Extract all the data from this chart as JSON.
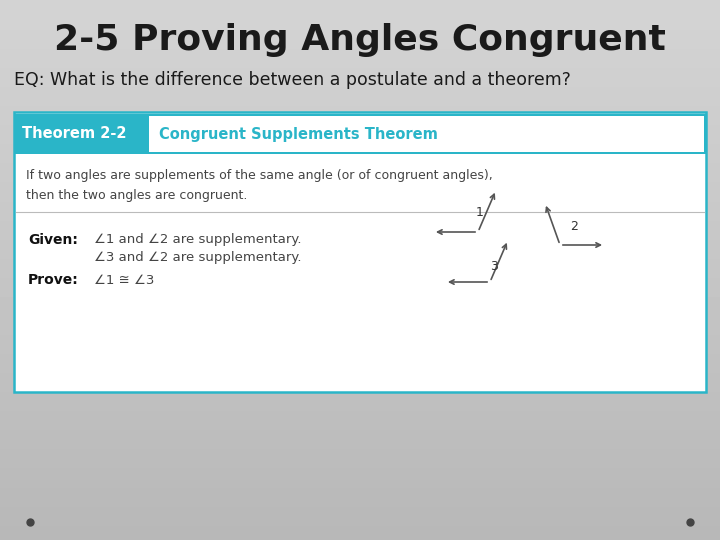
{
  "title": "2-5 Proving Angles Congruent",
  "eq_text": "EQ: What is the difference between a postulate and a theorem?",
  "theorem_label": "Theorem 2-2",
  "theorem_title": "Congruent Supplements Theorem",
  "theorem_body_line1": "If two angles are supplements of the same angle (or of congruent angles),",
  "theorem_body_line2": "then the two angles are congruent.",
  "given_label": "Given:",
  "given_line1": "∠1 and ∠2 are supplementary.",
  "given_line2": "∠3 and ∠2 are supplementary.",
  "prove_label": "Prove:",
  "prove_text": "∠1 ≅ ∠3",
  "title_color": "#1a1a1a",
  "eq_color": "#1a1a1a",
  "box_bg": "#ffffff",
  "box_border": "#2ab5c8",
  "theorem_header_bg": "#2ab5c8",
  "theorem_header_text": "#ffffff",
  "theorem_title_color": "#2ab5c8",
  "body_text_color": "#444444",
  "given_prove_label_color": "#111111",
  "dot_color": "#444444",
  "bg_light": "#cccccc",
  "bg_dark": "#b0b0b0"
}
